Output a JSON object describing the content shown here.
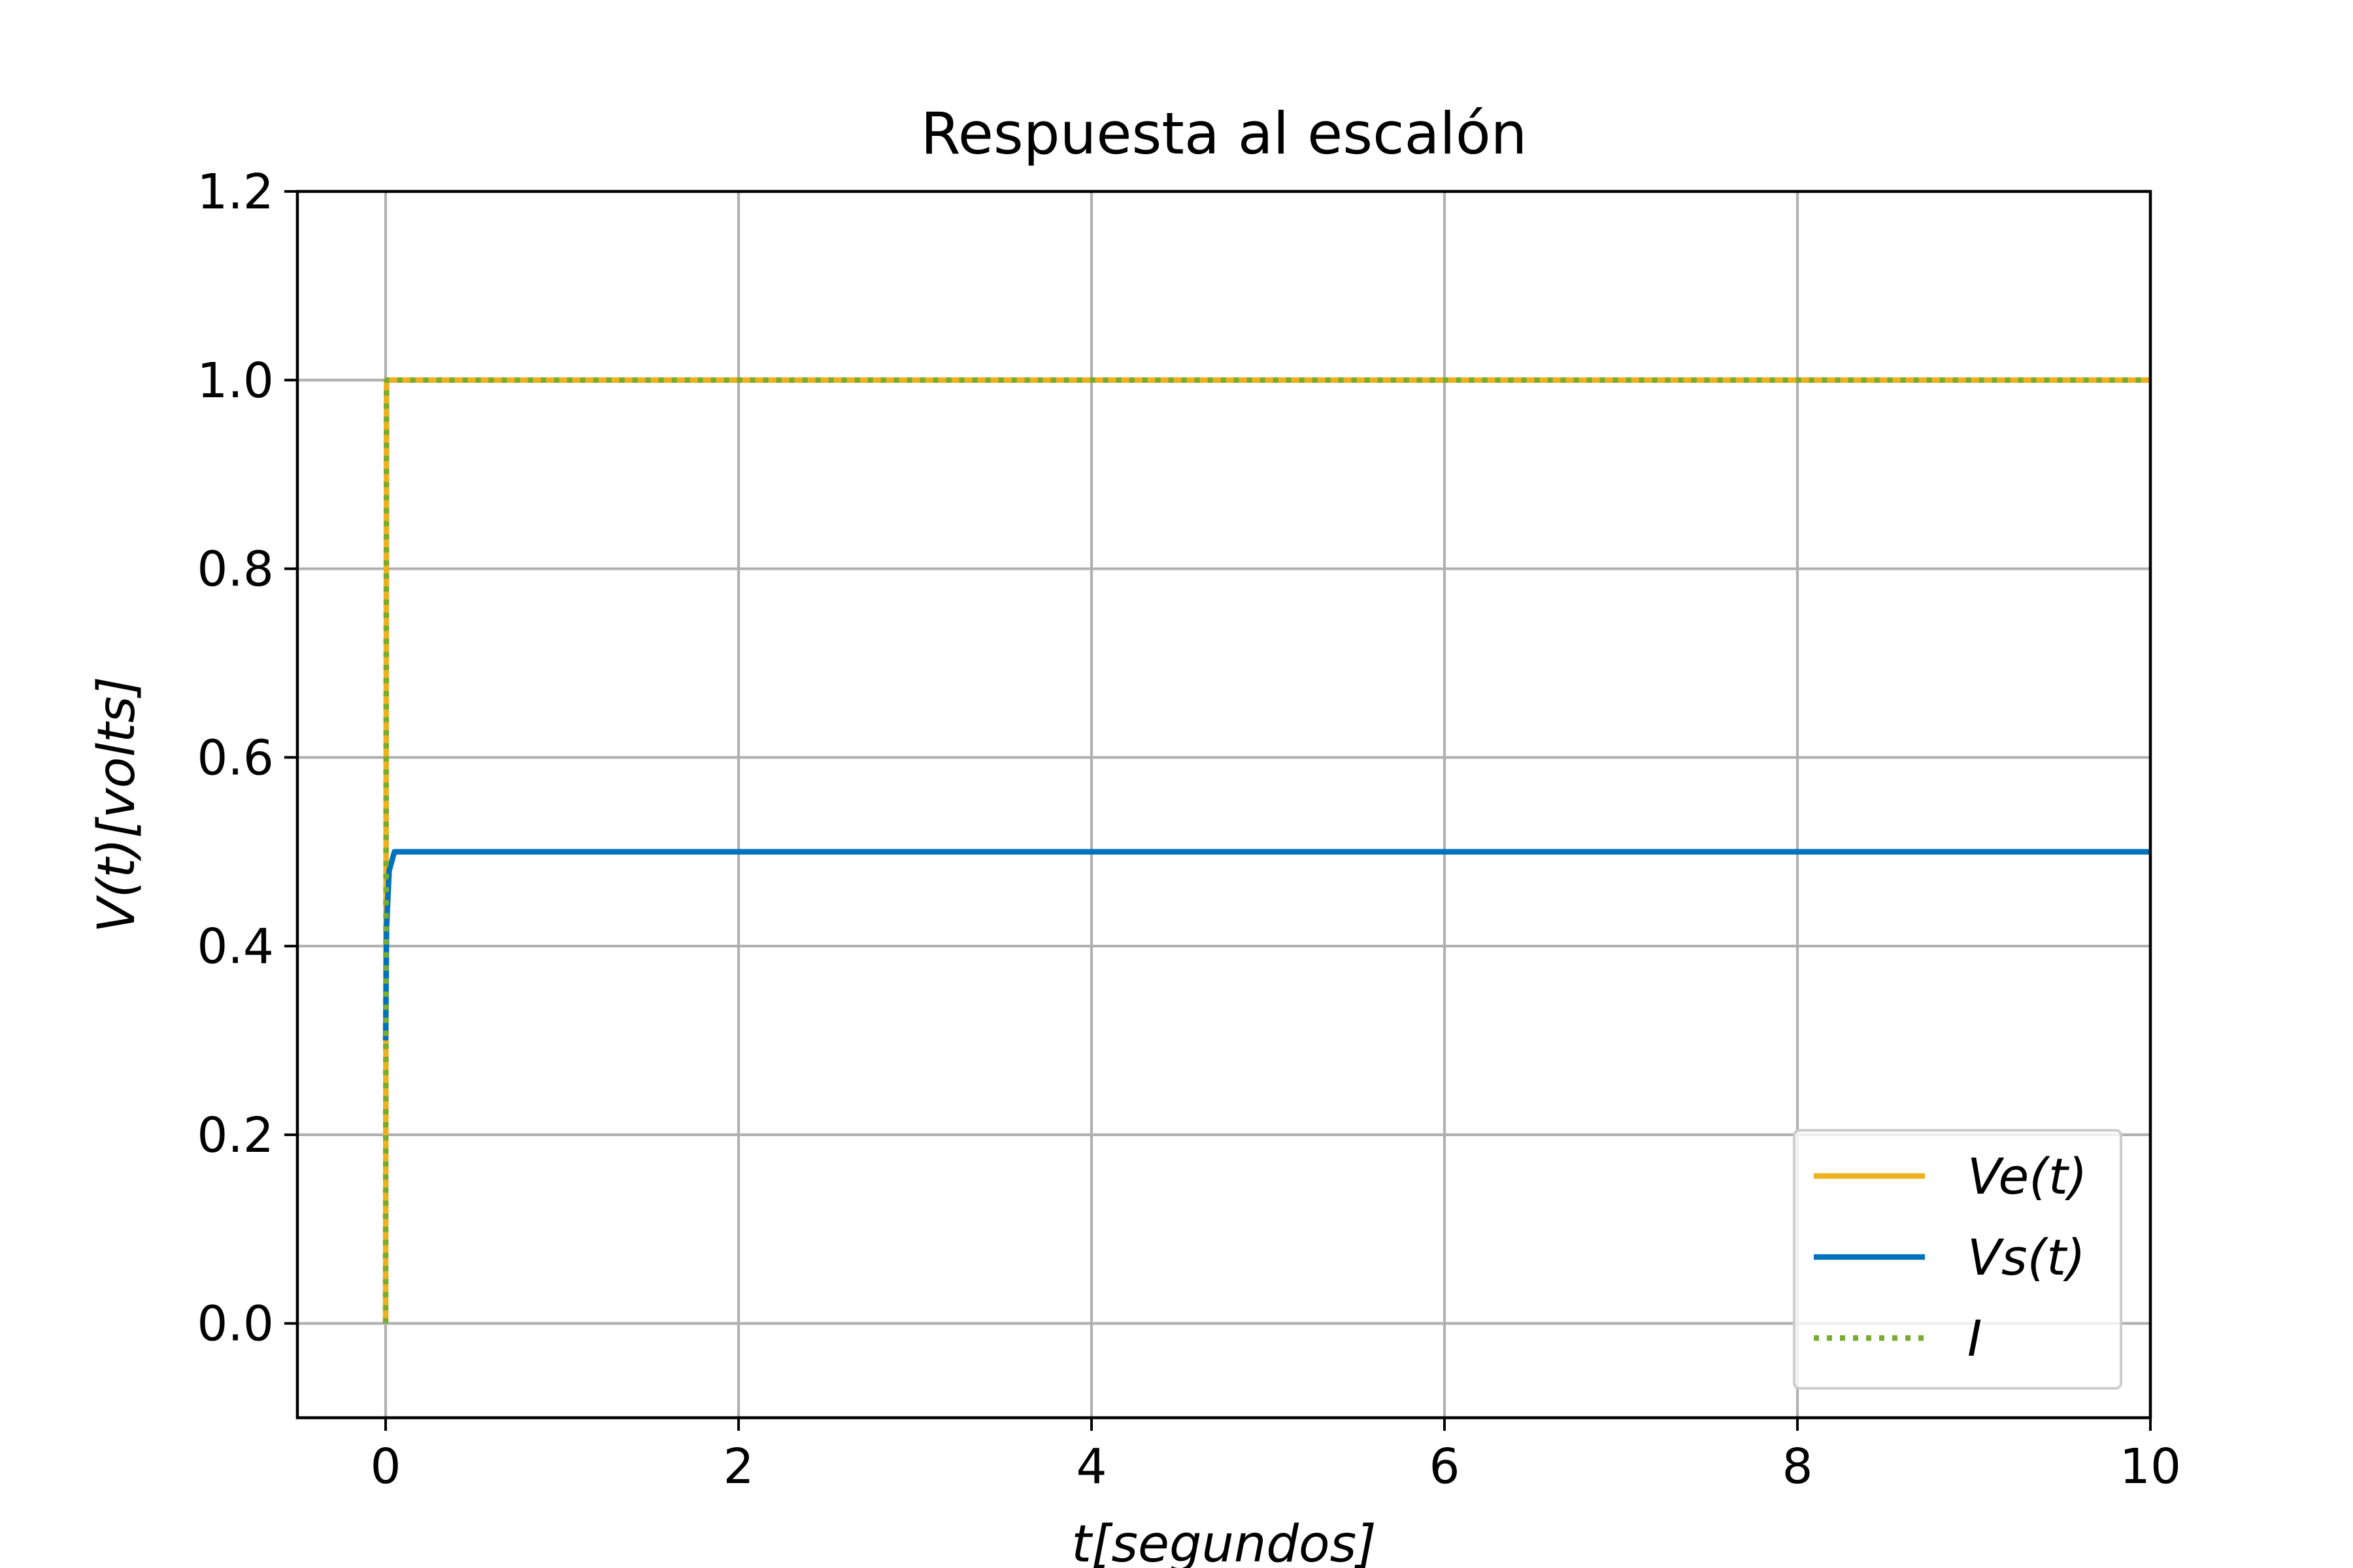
{
  "chart_data": {
    "type": "line",
    "title": "Respuesta al escalón",
    "xlabel": "t[segundos]",
    "ylabel": "V(t)[volts]",
    "xlim": [
      -0.5,
      10
    ],
    "ylim": [
      -0.1,
      1.2
    ],
    "xticks": [
      0,
      2,
      4,
      6,
      8,
      10
    ],
    "xtick_labels": [
      "0",
      "2",
      "4",
      "6",
      "8",
      "10"
    ],
    "yticks": [
      0.0,
      0.2,
      0.4,
      0.6,
      0.8,
      1.0,
      1.2
    ],
    "ytick_labels": [
      "0.0",
      "0.2",
      "0.4",
      "0.6",
      "0.8",
      "1.0",
      "1.2"
    ],
    "grid": true,
    "legend_position": "lower-right",
    "series": [
      {
        "name": "Ve(t)",
        "color": "#EDB120",
        "style": "solid",
        "x": [
          0,
          0.005,
          10
        ],
        "y": [
          0,
          1.0,
          1.0
        ]
      },
      {
        "name": "Vs(t)",
        "color": "#0072BD",
        "style": "solid",
        "x": [
          0,
          0.0,
          0.005,
          0.02,
          0.05,
          10
        ],
        "y": [
          0.3,
          0.3,
          0.42,
          0.48,
          0.5,
          0.5
        ]
      },
      {
        "name": "I",
        "color": "#77AC30",
        "style": "dotted",
        "x": [
          0,
          0.005,
          0.02,
          10
        ],
        "y": [
          0,
          1.0,
          1.0,
          1.0
        ]
      }
    ]
  }
}
